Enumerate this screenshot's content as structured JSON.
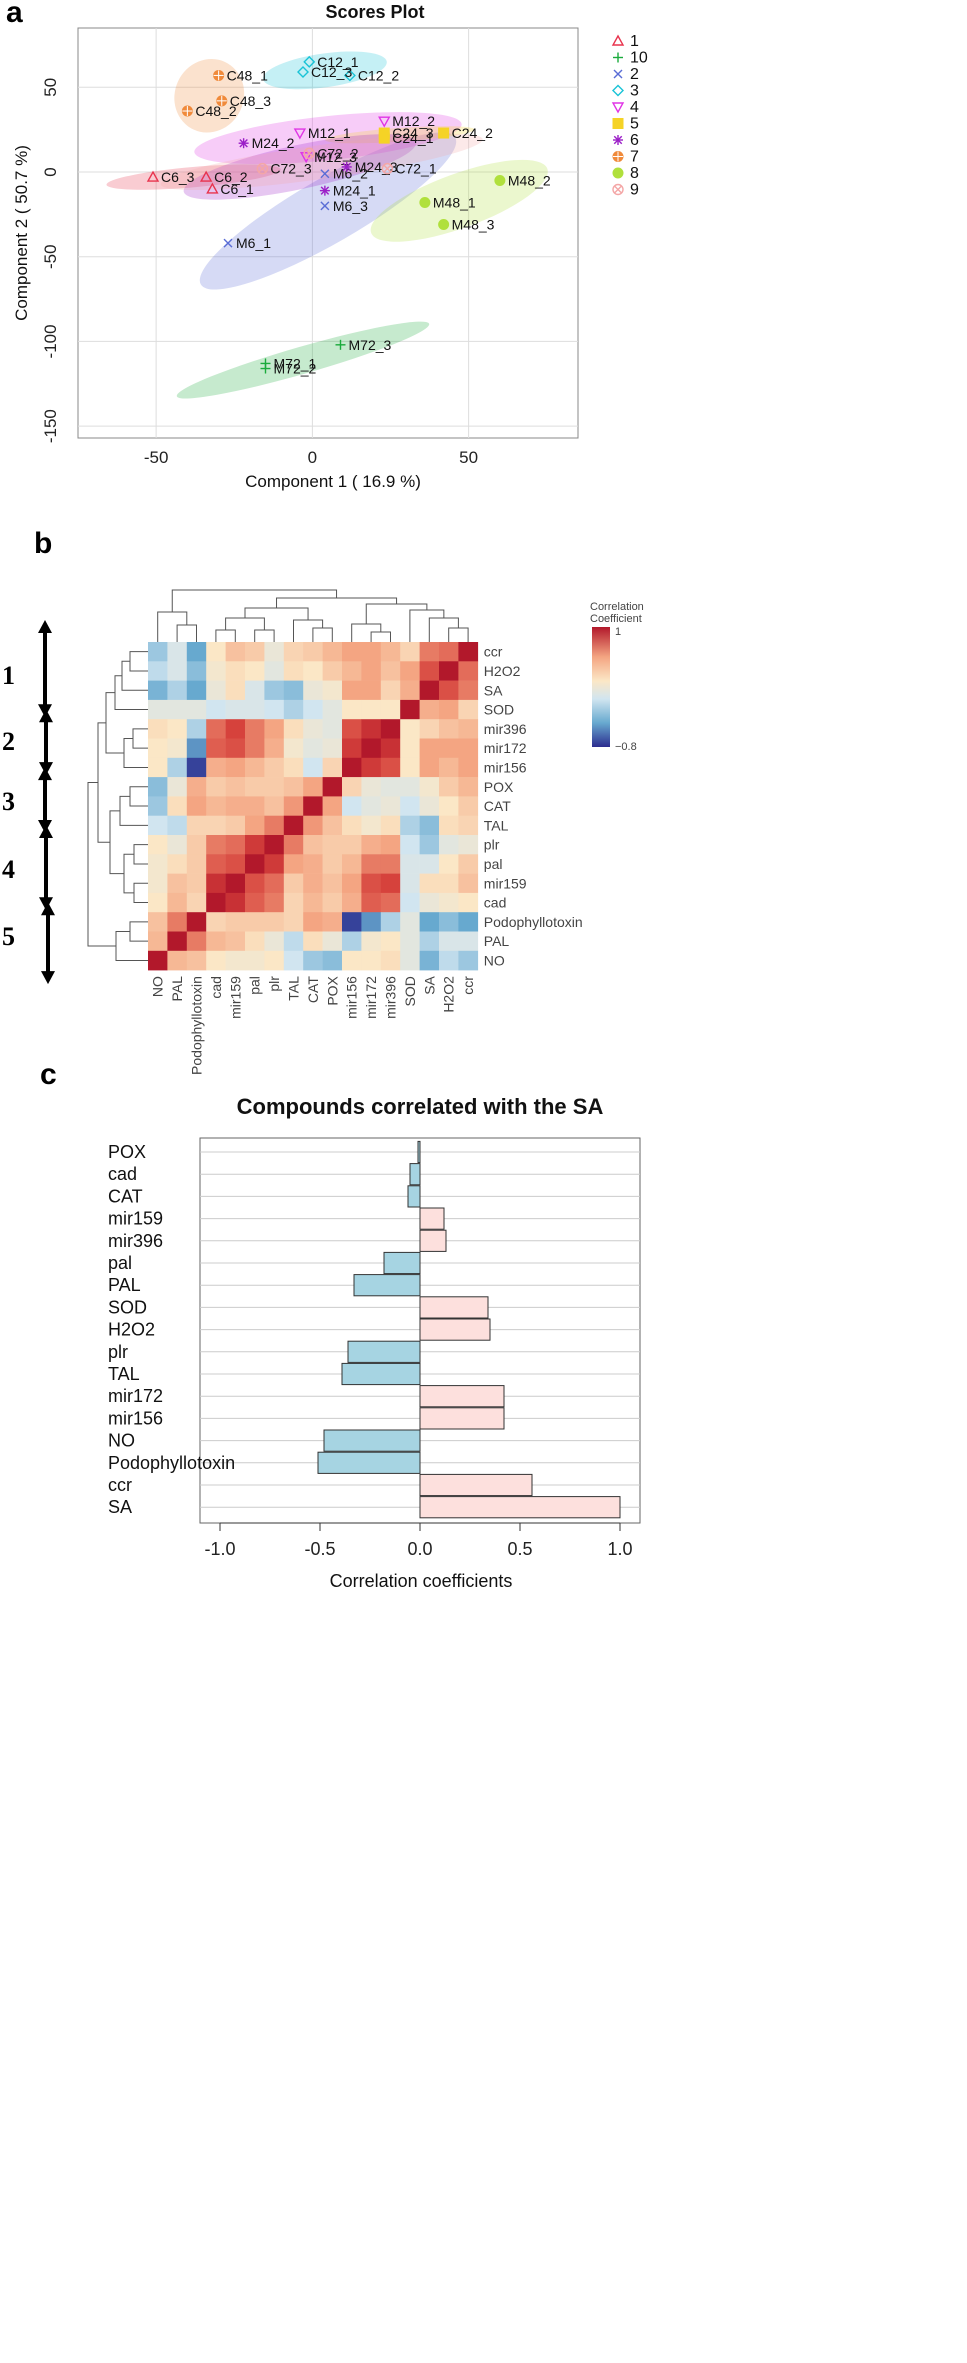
{
  "panel_letters": {
    "a": "a",
    "b": "b",
    "c": "c"
  },
  "chart_data": [
    {
      "type": "scatter",
      "title": "Scores Plot",
      "xlabel": "Component 1 ( 16.9 %)",
      "ylabel": "Component 2 ( 50.7 %)",
      "xlim": [
        -75,
        85
      ],
      "ylim": [
        -157,
        85
      ],
      "xticks": [
        -50,
        0,
        50
      ],
      "yticks": [
        -150,
        -100,
        -50,
        0,
        50
      ],
      "tick_labels_x": [
        "-50",
        "0",
        "50"
      ],
      "tick_labels_y": [
        "-150",
        "-100",
        "-50",
        "0",
        "50"
      ],
      "groups": [
        {
          "name": "1",
          "color": "#e8334d",
          "marker": "triangle-up",
          "points": [
            {
              "label": "C6_1",
              "x": -32,
              "y": -10
            },
            {
              "label": "C6_2",
              "x": -34,
              "y": -3
            },
            {
              "label": "C6_3",
              "x": -51,
              "y": -3
            }
          ],
          "ellipse": {
            "cx": -38,
            "cy": -3,
            "rx": 28,
            "ry": 6,
            "angle": -5
          }
        },
        {
          "name": "10",
          "color": "#1aab3c",
          "marker": "plus",
          "points": [
            {
              "label": "M72_1",
              "x": -15,
              "y": -113
            },
            {
              "label": "M72_2",
              "x": -15,
              "y": -116
            },
            {
              "label": "M72_3",
              "x": 9,
              "y": -102
            }
          ],
          "ellipse": {
            "cx": -3,
            "cy": -111,
            "rx": 42,
            "ry": 8,
            "angle": -16
          }
        },
        {
          "name": "2",
          "color": "#5a6dd6",
          "marker": "x",
          "points": [
            {
              "label": "M6_1",
              "x": -27,
              "y": -42
            },
            {
              "label": "M6_2",
              "x": 4,
              "y": -1
            },
            {
              "label": "M6_3",
              "x": 4,
              "y": -20
            }
          ],
          "ellipse": {
            "cx": 5,
            "cy": -23,
            "rx": 47,
            "ry": 19,
            "angle": -30
          }
        },
        {
          "name": "3",
          "color": "#19c3d6",
          "marker": "diamond",
          "points": [
            {
              "label": "C12_1",
              "x": -1,
              "y": 65
            },
            {
              "label": "C12_2",
              "x": 12,
              "y": 57
            },
            {
              "label": "C12_3",
              "x": -3,
              "y": 59
            }
          ],
          "ellipse": {
            "cx": 4,
            "cy": 60,
            "rx": 20,
            "ry": 10,
            "angle": -8
          }
        },
        {
          "name": "4",
          "color": "#e034e5",
          "marker": "triangle-down",
          "points": [
            {
              "label": "M12_1",
              "x": -4,
              "y": 23
            },
            {
              "label": "M12_2",
              "x": 23,
              "y": 30
            },
            {
              "label": "M12_3",
              "x": -2,
              "y": 9
            }
          ],
          "ellipse": {
            "cx": 5,
            "cy": 20,
            "rx": 43,
            "ry": 13,
            "angle": -6
          }
        },
        {
          "name": "5",
          "color": "#f5d326",
          "marker": "square",
          "points": [
            {
              "label": "C24_1",
              "x": 23,
              "y": 20
            },
            {
              "label": "C24_2",
              "x": 42,
              "y": 23
            },
            {
              "label": "C24_3",
              "x": 23,
              "y": 23
            }
          ],
          "ellipse": {
            "cx": 28,
            "cy": 22,
            "rx": 24,
            "ry": 4,
            "angle": -4
          }
        },
        {
          "name": "6",
          "color": "#9b1fc7",
          "marker": "star",
          "points": [
            {
              "label": "M24_1",
              "x": 4,
              "y": -11
            },
            {
              "label": "M24_2",
              "x": -22,
              "y": 17
            },
            {
              "label": "M24_3",
              "x": 11,
              "y": 3
            }
          ],
          "ellipse": {
            "cx": -4,
            "cy": 3,
            "rx": 38,
            "ry": 13,
            "angle": -12
          }
        },
        {
          "name": "7",
          "color": "#f08a3b",
          "marker": "circle-plus",
          "points": [
            {
              "label": "C48_1",
              "x": -30,
              "y": 57
            },
            {
              "label": "C48_2",
              "x": -40,
              "y": 36
            },
            {
              "label": "C48_3",
              "x": -29,
              "y": 42
            }
          ],
          "ellipse": {
            "cx": -33,
            "cy": 45,
            "rx": 11,
            "ry": 22,
            "angle": 25
          }
        },
        {
          "name": "8",
          "color": "#b0e03c",
          "marker": "circle",
          "points": [
            {
              "label": "M48_1",
              "x": 36,
              "y": -18
            },
            {
              "label": "M48_2",
              "x": 60,
              "y": -5
            },
            {
              "label": "M48_3",
              "x": 42,
              "y": -31
            }
          ],
          "ellipse": {
            "cx": 47,
            "cy": -17,
            "rx": 30,
            "ry": 16,
            "angle": -20
          }
        },
        {
          "name": "9",
          "color": "#f4a6a6",
          "marker": "circle-x",
          "points": [
            {
              "label": "C72_1",
              "x": 24,
              "y": 2
            },
            {
              "label": "C72_2",
              "x": -1,
              "y": 11
            },
            {
              "label": "C72_3",
              "x": -16,
              "y": 2
            }
          ],
          "ellipse": {
            "cx": 3,
            "cy": 6,
            "rx": 52,
            "ry": 10,
            "angle": -8
          }
        }
      ]
    },
    {
      "type": "heatmap",
      "legend_title": [
        "Correlation",
        "Coefficient"
      ],
      "legend_max": "1",
      "legend_min": "−0.8",
      "vmin": -0.8,
      "vmax": 1,
      "row_labels": [
        "ccr",
        "H2O2",
        "SA",
        "SOD",
        "mir396",
        "mir172",
        "mir156",
        "POX",
        "CAT",
        "TAL",
        "plr",
        "pal",
        "mir159",
        "cad",
        "Podophyllotoxin",
        "PAL",
        "NO"
      ],
      "col_labels": [
        "NO",
        "PAL",
        "Podophyllotoxin",
        "cad",
        "mir159",
        "pal",
        "plr",
        "TAL",
        "CAT",
        "POX",
        "mir156",
        "mir172",
        "mir396",
        "SOD",
        "SA",
        "H2O2",
        "ccr"
      ],
      "values": [
        [
          -0.35,
          -0.15,
          -0.5,
          0.05,
          0.25,
          0.2,
          -0.05,
          0.15,
          0.2,
          0.3,
          0.4,
          0.4,
          0.3,
          0.15,
          0.55,
          0.6,
          1.0
        ],
        [
          -0.25,
          -0.15,
          -0.4,
          0.0,
          0.1,
          0.05,
          -0.1,
          0.1,
          0.05,
          0.2,
          0.3,
          0.4,
          0.25,
          0.4,
          0.7,
          1.0,
          0.6
        ],
        [
          -0.45,
          -0.3,
          -0.5,
          -0.05,
          0.1,
          -0.15,
          -0.35,
          -0.4,
          -0.05,
          0.0,
          0.4,
          0.4,
          0.15,
          0.35,
          1.0,
          0.7,
          0.55
        ],
        [
          -0.1,
          -0.1,
          -0.1,
          -0.2,
          -0.15,
          -0.15,
          -0.2,
          -0.3,
          -0.2,
          -0.1,
          0.05,
          0.05,
          0.05,
          1.0,
          0.35,
          0.4,
          0.15
        ],
        [
          0.1,
          0.05,
          -0.3,
          0.6,
          0.75,
          0.55,
          0.4,
          0.1,
          -0.05,
          -0.1,
          0.7,
          0.85,
          1.0,
          0.05,
          0.15,
          0.25,
          0.3
        ],
        [
          0.05,
          0.0,
          -0.55,
          0.65,
          0.7,
          0.55,
          0.35,
          0.0,
          -0.1,
          -0.05,
          0.8,
          1.0,
          0.85,
          0.05,
          0.4,
          0.4,
          0.4
        ],
        [
          0.05,
          -0.3,
          -0.75,
          0.35,
          0.4,
          0.3,
          0.2,
          0.1,
          -0.2,
          0.15,
          1.0,
          0.8,
          0.7,
          0.05,
          0.4,
          0.3,
          0.4
        ],
        [
          -0.4,
          -0.05,
          0.35,
          0.2,
          0.25,
          0.2,
          0.2,
          0.25,
          0.4,
          1.0,
          0.15,
          -0.05,
          -0.1,
          -0.1,
          0.0,
          0.2,
          0.3
        ],
        [
          -0.35,
          0.1,
          0.4,
          0.3,
          0.35,
          0.35,
          0.25,
          0.45,
          1.0,
          0.4,
          -0.2,
          -0.1,
          -0.05,
          -0.2,
          -0.05,
          0.05,
          0.2
        ],
        [
          -0.2,
          -0.25,
          0.15,
          0.15,
          0.2,
          0.4,
          0.55,
          1.0,
          0.45,
          0.25,
          0.1,
          0.0,
          0.1,
          -0.3,
          -0.4,
          0.1,
          0.15
        ],
        [
          0.05,
          -0.05,
          0.2,
          0.55,
          0.6,
          0.8,
          1.0,
          0.55,
          0.25,
          0.2,
          0.2,
          0.35,
          0.4,
          -0.2,
          -0.35,
          -0.1,
          -0.05
        ],
        [
          0.0,
          0.1,
          0.2,
          0.65,
          0.7,
          1.0,
          0.8,
          0.4,
          0.35,
          0.2,
          0.3,
          0.55,
          0.55,
          -0.15,
          -0.15,
          0.05,
          0.2
        ],
        [
          0.0,
          0.25,
          0.2,
          0.85,
          1.0,
          0.7,
          0.6,
          0.2,
          0.35,
          0.25,
          0.4,
          0.7,
          0.75,
          -0.15,
          0.1,
          0.1,
          0.25
        ],
        [
          0.05,
          0.3,
          0.15,
          1.0,
          0.85,
          0.65,
          0.55,
          0.15,
          0.3,
          0.2,
          0.35,
          0.65,
          0.6,
          -0.2,
          -0.05,
          0.0,
          0.05
        ],
        [
          0.25,
          0.55,
          1.0,
          0.15,
          0.2,
          0.2,
          0.2,
          0.15,
          0.4,
          0.35,
          -0.75,
          -0.55,
          -0.3,
          -0.1,
          -0.5,
          -0.4,
          -0.5
        ],
        [
          0.3,
          1.0,
          0.55,
          0.3,
          0.25,
          0.1,
          -0.05,
          -0.25,
          0.1,
          -0.05,
          -0.3,
          0.0,
          0.05,
          -0.1,
          -0.3,
          -0.15,
          -0.15
        ],
        [
          1.0,
          0.3,
          0.25,
          0.05,
          0.0,
          0.0,
          0.05,
          -0.2,
          -0.35,
          -0.4,
          0.05,
          0.05,
          0.1,
          -0.1,
          -0.45,
          -0.25,
          -0.35
        ]
      ],
      "clusters": [
        {
          "label": "1"
        },
        {
          "label": "2"
        },
        {
          "label": "3"
        },
        {
          "label": "4"
        },
        {
          "label": "5"
        }
      ]
    },
    {
      "type": "bar",
      "orientation": "horizontal",
      "title": "Compounds correlated with the SA",
      "xlabel": "Correlation coefficients",
      "xlim": [
        -1.0,
        1.0
      ],
      "xticks": [
        -1.0,
        -0.5,
        0.0,
        0.5,
        1.0
      ],
      "tick_labels_x": [
        "-1.0",
        "-0.5",
        "0.0",
        "0.5",
        "1.0"
      ],
      "positive_color": "#fde0dd",
      "negative_color": "#a6d4e2",
      "categories": [
        "POX",
        "cad",
        "CAT",
        "mir159",
        "mir396",
        "pal",
        "PAL",
        "SOD",
        "H2O2",
        "plr",
        "TAL",
        "mir172",
        "mir156",
        "NO",
        "Podophyllotoxin",
        "ccr",
        "SA"
      ],
      "values": [
        -0.01,
        -0.05,
        -0.06,
        0.12,
        0.13,
        -0.18,
        -0.33,
        0.34,
        0.35,
        -0.36,
        -0.39,
        0.42,
        0.42,
        -0.48,
        -0.51,
        0.56,
        1.0
      ]
    }
  ]
}
